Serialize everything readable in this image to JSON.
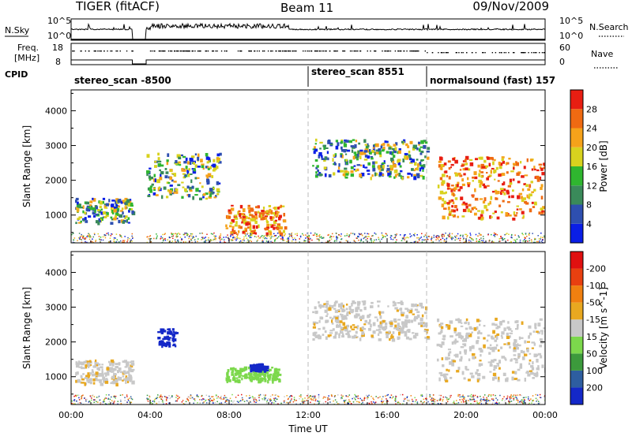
{
  "header": {
    "title": "TIGER (fitACF)",
    "beam": "Beam 11",
    "date": "09/Nov/2009"
  },
  "strips": {
    "nsky_label": "N.Sky",
    "nsky_ticks": [
      "10^5",
      "10^0"
    ],
    "nsearch_label": "N.Search",
    "nsearch_ticks": [
      "10^5",
      "10^0"
    ],
    "freq_label_line1": "Freq.",
    "freq_label_line2": "[MHz]",
    "freq_ticks": [
      "18",
      "8"
    ],
    "nave_label": "Nave",
    "nave_ticks": [
      "60",
      "0"
    ],
    "cpid_label": "CPID",
    "cpid_segments": [
      {
        "label": "stereo_scan -8500",
        "start": "00:00",
        "end": "12:00"
      },
      {
        "label": "stereo_scan 8551",
        "start": "12:00",
        "end": "18:00"
      },
      {
        "label": "normalsound (fast) 157",
        "start": "18:00",
        "end": "00:00"
      }
    ]
  },
  "chart_data": [
    {
      "type": "heatmap",
      "quantity": "Power",
      "ylabel": "Slant Range [km]",
      "yticks": [
        1000,
        2000,
        3000,
        4000
      ],
      "ylim": [
        200,
        4600
      ],
      "xlim_hours": [
        0,
        24
      ],
      "colorbar_label": "Power [dB]",
      "colorbar_ticks": [
        "4",
        "8",
        "12",
        "16",
        "20",
        "24",
        "28"
      ],
      "colorbar_colors": [
        "#0a1ee6",
        "#2e4fb0",
        "#3a8a5a",
        "#2fb62f",
        "#d8d21e",
        "#f5a21a",
        "#ef6a12",
        "#e81e12"
      ],
      "data_gap_hours": [
        3.1,
        3.8
      ],
      "features": [
        {
          "t_start": 0.2,
          "t_end": 3.1,
          "range_low": 800,
          "range_high": 1500,
          "level": "medium"
        },
        {
          "t_start": 3.8,
          "t_end": 7.5,
          "range_low": 1500,
          "range_high": 2800,
          "level": "medium"
        },
        {
          "t_start": 7.8,
          "t_end": 10.8,
          "range_low": 500,
          "range_high": 1300,
          "level": "high"
        },
        {
          "t_start": 12.2,
          "t_end": 18.0,
          "range_low": 2100,
          "range_high": 3200,
          "level": "medium"
        },
        {
          "t_start": 18.5,
          "t_end": 24.0,
          "range_low": 900,
          "range_high": 2700,
          "level": "high"
        }
      ]
    },
    {
      "type": "heatmap",
      "quantity": "Velocity",
      "ylabel": "Slant Range [km]",
      "yticks": [
        1000,
        2000,
        3000,
        4000
      ],
      "ylim": [
        200,
        4600
      ],
      "xlim_hours": [
        0,
        24
      ],
      "xticks": [
        "00:00",
        "04:00",
        "08:00",
        "12:00",
        "16:00",
        "20:00",
        "00:00"
      ],
      "xlabel": "Time UT",
      "colorbar_label": "Velocity [m s^-1]",
      "colorbar_ticks": [
        "200",
        "100",
        "50",
        "15",
        "-15",
        "-50",
        "-100",
        "-200"
      ],
      "colorbar_colors": [
        "#1428c8",
        "#2e5ea0",
        "#3c9a3c",
        "#7cd84c",
        "#c8c8c8",
        "#e8a820",
        "#f08010",
        "#e84010",
        "#e01010"
      ],
      "data_gap_hours": [
        3.1,
        3.8
      ],
      "features": [
        {
          "t_start": 0.2,
          "t_end": 3.1,
          "range_low": 800,
          "range_high": 1500,
          "velocity": "-15..15"
        },
        {
          "t_start": 4.3,
          "t_end": 5.3,
          "range_low": 1900,
          "range_high": 2400,
          "velocity": "200"
        },
        {
          "t_start": 7.8,
          "t_end": 10.5,
          "range_low": 900,
          "range_high": 1300,
          "velocity": "15..50"
        },
        {
          "t_start": 9.0,
          "t_end": 9.9,
          "range_low": 1200,
          "range_high": 1400,
          "velocity": "200"
        },
        {
          "t_start": 12.2,
          "t_end": 18.0,
          "range_low": 2100,
          "range_high": 3200,
          "velocity": "-15..15"
        },
        {
          "t_start": 18.5,
          "t_end": 24.0,
          "range_low": 900,
          "range_high": 2700,
          "velocity": "-15..15"
        }
      ]
    }
  ]
}
